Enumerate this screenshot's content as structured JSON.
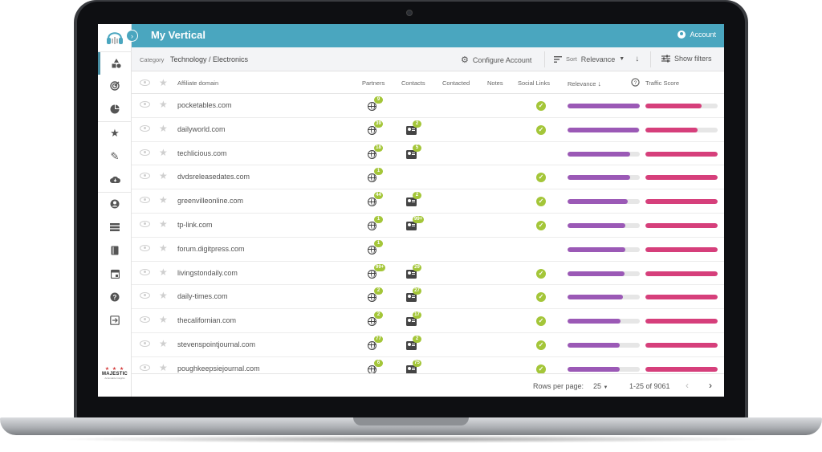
{
  "app": {
    "title": "My Vertical",
    "account_label": "Account"
  },
  "sidebar": {
    "brand": {
      "name": "MAJESTIC",
      "tagline": "Actionable Insights"
    },
    "items": [
      {
        "icon": "shapes-icon"
      },
      {
        "icon": "radar-icon"
      },
      {
        "icon": "pie-chart-icon"
      },
      {
        "icon": "star-icon"
      },
      {
        "icon": "pencil-icon"
      },
      {
        "icon": "cloud-download-icon"
      },
      {
        "icon": "account-circle-icon"
      },
      {
        "icon": "list-icon"
      },
      {
        "icon": "book-icon"
      },
      {
        "icon": "calendar-icon"
      },
      {
        "icon": "help-icon"
      },
      {
        "icon": "logout-icon"
      }
    ]
  },
  "toolbar": {
    "category_label": "Category",
    "category_value": "Technology / Electronics",
    "configure_label": "Configure Account",
    "sort_label": "Sort",
    "sort_value": "Relevance",
    "show_filters_label": "Show filters"
  },
  "table": {
    "headers": {
      "domain": "Affiliate domain",
      "partners": "Partners",
      "contacts": "Contacts",
      "contacted": "Contacted",
      "notes": "Notes",
      "social": "Social Links",
      "relevance": "Relevance",
      "traffic": "Traffic Score"
    },
    "rows": [
      {
        "domain": "pocketables.com",
        "partners": "9",
        "contacts": "",
        "social": true,
        "relevance": 1.0,
        "traffic": 0.78
      },
      {
        "domain": "dailyworld.com",
        "partners": "39",
        "contacts": "2",
        "social": true,
        "relevance": 0.99,
        "traffic": 0.72
      },
      {
        "domain": "techlicious.com",
        "partners": "18",
        "contacts": "5",
        "social": false,
        "relevance": 0.87,
        "traffic": 1.0
      },
      {
        "domain": "dvdsreleasedates.com",
        "partners": "1",
        "contacts": "",
        "social": true,
        "relevance": 0.87,
        "traffic": 1.0
      },
      {
        "domain": "greenvilleonline.com",
        "partners": "44",
        "contacts": "2",
        "social": true,
        "relevance": 0.83,
        "traffic": 1.0
      },
      {
        "domain": "tp-link.com",
        "partners": "1",
        "contacts": "99+",
        "social": true,
        "relevance": 0.8,
        "traffic": 1.0
      },
      {
        "domain": "forum.digitpress.com",
        "partners": "1",
        "contacts": "",
        "social": false,
        "relevance": 0.8,
        "traffic": 1.0
      },
      {
        "domain": "livingstondaily.com",
        "partners": "99+",
        "contacts": "29",
        "social": true,
        "relevance": 0.79,
        "traffic": 1.0
      },
      {
        "domain": "daily-times.com",
        "partners": "2",
        "contacts": "27",
        "social": true,
        "relevance": 0.77,
        "traffic": 1.0
      },
      {
        "domain": "thecalifornian.com",
        "partners": "2",
        "contacts": "17",
        "social": true,
        "relevance": 0.73,
        "traffic": 1.0
      },
      {
        "domain": "stevenspointjournal.com",
        "partners": "77",
        "contacts": "2",
        "social": true,
        "relevance": 0.72,
        "traffic": 1.0
      },
      {
        "domain": "poughkeepsiejournal.com",
        "partners": "6",
        "contacts": "75",
        "social": true,
        "relevance": 0.72,
        "traffic": 1.0
      }
    ]
  },
  "footer": {
    "rows_per_page_label": "Rows per page:",
    "rows_per_page_value": "25",
    "range": "1-25 of 9061"
  },
  "colors": {
    "header": "#4aa6bf",
    "relevance": "#9b59b6",
    "traffic": "#d63f7b",
    "badge": "#a4c639"
  }
}
